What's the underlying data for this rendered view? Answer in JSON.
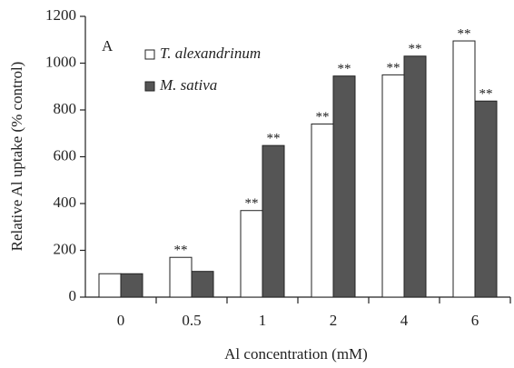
{
  "chart_data": {
    "type": "bar",
    "panel_label": "A",
    "x_label": "Al concentration (mM)",
    "y_label": "Relative Al uptake (% control)",
    "categories": [
      "0",
      "0.5",
      "1",
      "2",
      "4",
      "6"
    ],
    "series": [
      {
        "name": "T. alexandrinum",
        "color": "#ffffff",
        "values": [
          100,
          170,
          370,
          740,
          950,
          1095
        ],
        "significance": [
          null,
          "**",
          "**",
          "**",
          "**",
          "**"
        ]
      },
      {
        "name": "M. sativa",
        "color": "#555555",
        "values": [
          100,
          110,
          648,
          945,
          1030,
          838
        ],
        "significance": [
          null,
          null,
          "**",
          "**",
          "**",
          "**"
        ]
      }
    ],
    "ylim": [
      0,
      1200
    ],
    "yticks": [
      0,
      200,
      400,
      600,
      800,
      1000,
      1200
    ],
    "grid": false
  }
}
